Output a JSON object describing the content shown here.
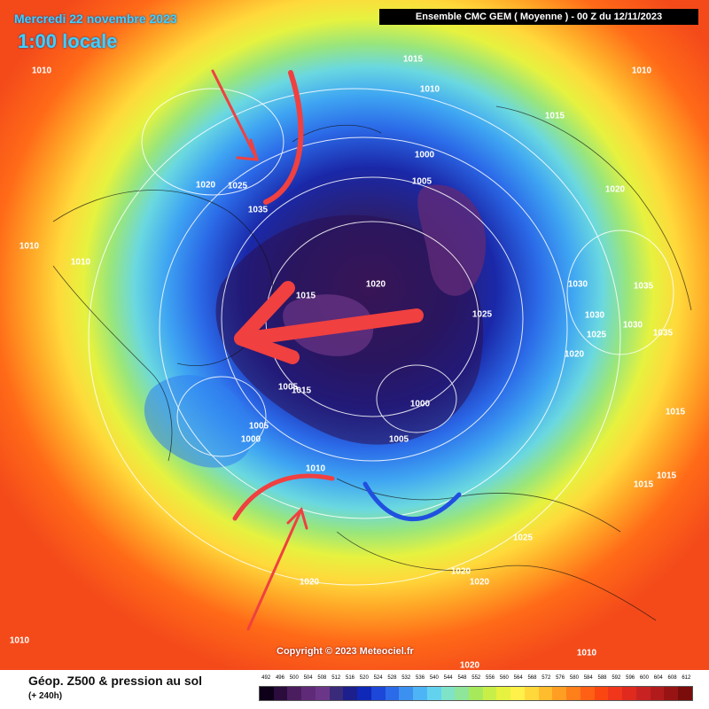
{
  "header": {
    "date": "Mercredi 22 novembre 2023",
    "local_time": "1:00 locale",
    "model": "Ensemble CMC GEM  ( Moyenne )  -  00 Z du 12/11/2023"
  },
  "map": {
    "isobar_labels": [
      "1010",
      "1015",
      "1010",
      "1010",
      "1015",
      "1020",
      "1025",
      "1035",
      "1000",
      "1005",
      "1010",
      "1020",
      "1010",
      "1015",
      "1020",
      "1030",
      "1035",
      "1025",
      "1030",
      "1025",
      "1030",
      "1035",
      "1020",
      "1005",
      "1015",
      "1000",
      "1015",
      "1005",
      "1000",
      "1005",
      "1015",
      "1010",
      "1025",
      "1015",
      "1020",
      "1020",
      "1020",
      "1010",
      "1010",
      "1020"
    ]
  },
  "legend": {
    "title": "Géop. Z500 & pression au sol",
    "lead_time": "(+ 240h)",
    "ticks": [
      "492",
      "496",
      "500",
      "504",
      "508",
      "512",
      "516",
      "520",
      "524",
      "528",
      "532",
      "536",
      "540",
      "544",
      "548",
      "552",
      "556",
      "560",
      "564",
      "568",
      "572",
      "576",
      "580",
      "584",
      "588",
      "592",
      "596",
      "600",
      "604",
      "608",
      "612"
    ],
    "colors": [
      "#0d0018",
      "#2b0c3d",
      "#4a1d5e",
      "#5f2a78",
      "#6c3688",
      "#3a2a7a",
      "#1c1f8c",
      "#0f28b8",
      "#1c47d8",
      "#2b6ae8",
      "#3c90f0",
      "#4db4f5",
      "#63d2ef",
      "#7fe3c8",
      "#8fe59a",
      "#a6ea5c",
      "#c7ef48",
      "#e6f23f",
      "#fff04a",
      "#ffd93b",
      "#ffbc2c",
      "#ff9e22",
      "#ff7f1a",
      "#ff6014",
      "#fb4612",
      "#f0361b",
      "#e02a1e",
      "#c92222",
      "#b21b1b",
      "#981414",
      "#7a0c0c"
    ]
  },
  "copyright": "Copyright © 2023 Meteociel.fr"
}
